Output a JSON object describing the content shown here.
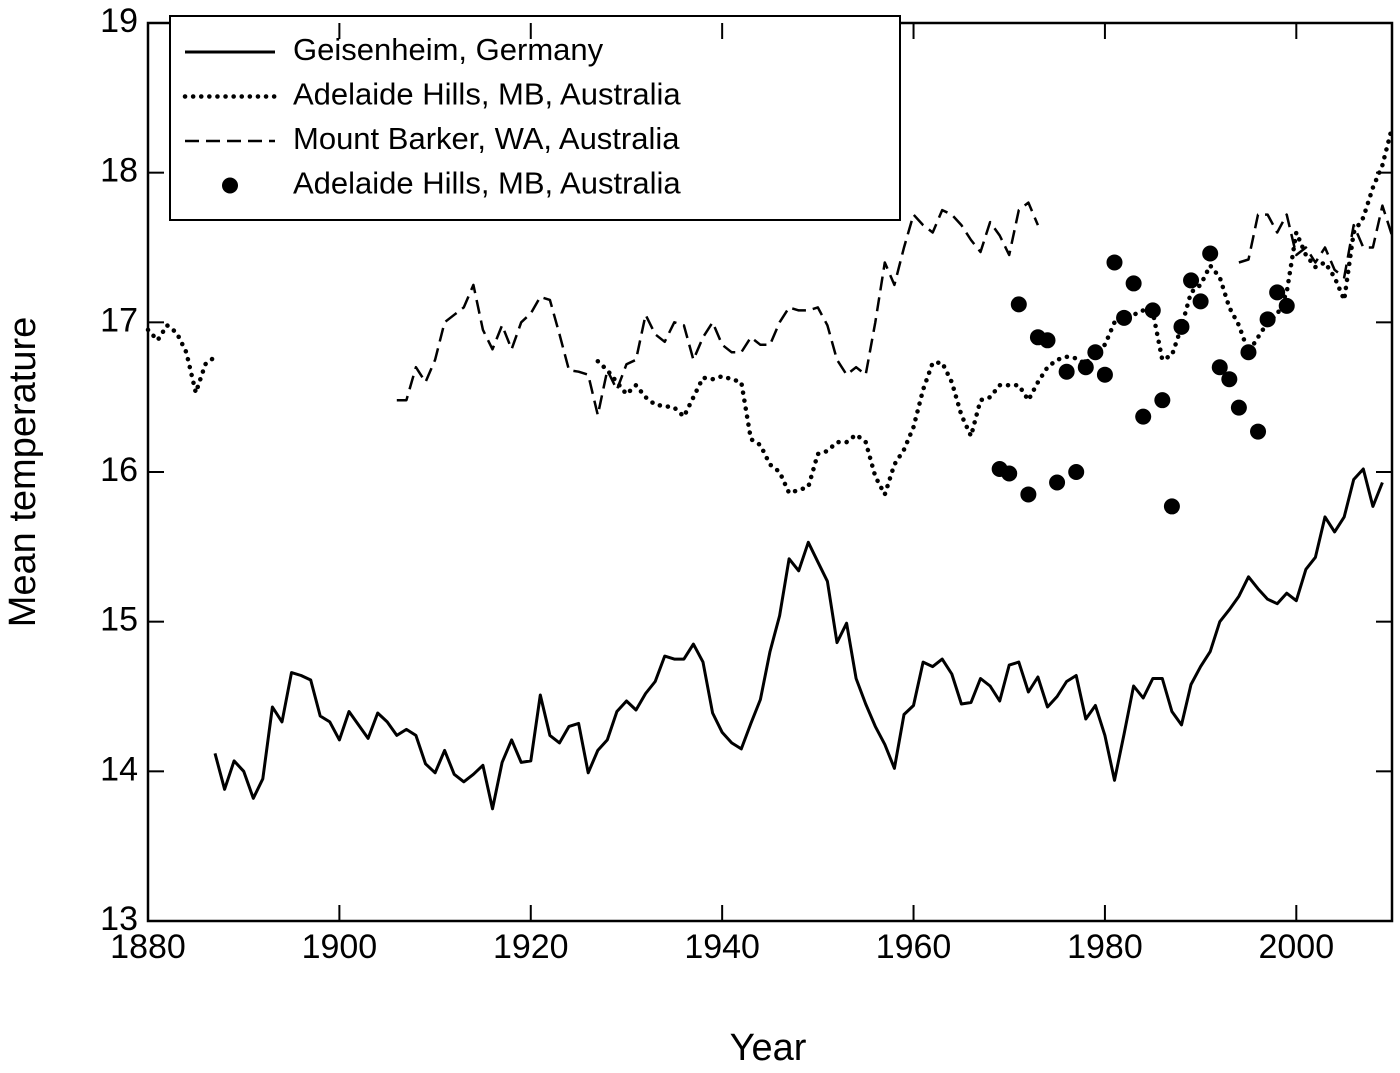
{
  "chart_data": {
    "type": "line",
    "xlabel": "Year",
    "ylabel": "Mean temperature",
    "xlim": [
      1880,
      2010
    ],
    "ylim": [
      13,
      19
    ],
    "xticks": [
      1880,
      1900,
      1920,
      1940,
      1960,
      1980,
      2000
    ],
    "yticks": [
      13,
      14,
      15,
      16,
      17,
      18,
      19
    ],
    "legend": "upper-left",
    "series": [
      {
        "name": "Geisenheim, Germany",
        "color": "#000000",
        "style": "solid",
        "x": [
          1887,
          1888,
          1889,
          1890,
          1891,
          1892,
          1893,
          1894,
          1895,
          1896,
          1897,
          1898,
          1899,
          1900,
          1901,
          1902,
          1903,
          1904,
          1905,
          1906,
          1907,
          1908,
          1909,
          1910,
          1911,
          1912,
          1913,
          1914,
          1915,
          1916,
          1917,
          1918,
          1919,
          1920,
          1921,
          1922,
          1923,
          1924,
          1925,
          1926,
          1927,
          1928,
          1929,
          1930,
          1931,
          1932,
          1933,
          1934,
          1935,
          1936,
          1937,
          1938,
          1939,
          1940,
          1941,
          1942,
          1943,
          1944,
          1945,
          1946,
          1947,
          1948,
          1949,
          1950,
          1951,
          1952,
          1953,
          1954,
          1955,
          1956,
          1957,
          1958,
          1959,
          1960,
          1961,
          1962,
          1963,
          1964,
          1965,
          1966,
          1967,
          1968,
          1969,
          1970,
          1971,
          1972,
          1973,
          1974,
          1975,
          1976,
          1977,
          1978,
          1979,
          1980,
          1981,
          1982,
          1983,
          1984,
          1985,
          1986,
          1987,
          1988,
          1989,
          1990,
          1991,
          1992,
          1993,
          1994,
          1995,
          1996,
          1997,
          1998,
          1999,
          2000,
          2001,
          2002,
          2003,
          2004,
          2005,
          2006,
          2007,
          2008,
          2009
        ],
        "values": [
          14.12,
          13.88,
          14.07,
          14.0,
          13.82,
          13.95,
          14.43,
          14.33,
          14.66,
          14.64,
          14.61,
          14.37,
          14.33,
          14.21,
          14.4,
          14.31,
          14.22,
          14.39,
          14.33,
          14.24,
          14.28,
          14.24,
          14.05,
          13.99,
          14.14,
          13.98,
          13.93,
          13.98,
          14.04,
          13.75,
          14.06,
          14.21,
          14.06,
          14.07,
          14.51,
          14.24,
          14.19,
          14.3,
          14.32,
          13.99,
          14.14,
          14.21,
          14.4,
          14.47,
          14.41,
          14.52,
          14.6,
          14.77,
          14.75,
          14.75,
          14.85,
          14.73,
          14.39,
          14.26,
          14.19,
          14.15,
          14.32,
          14.48,
          14.8,
          15.04,
          15.42,
          15.34,
          15.53,
          15.4,
          15.27,
          14.86,
          14.99,
          14.62,
          14.45,
          14.3,
          14.18,
          14.02,
          14.38,
          14.44,
          14.73,
          14.7,
          14.75,
          14.65,
          14.45,
          14.46,
          14.62,
          14.57,
          14.47,
          14.71,
          14.73,
          14.53,
          14.63,
          14.43,
          14.5,
          14.6,
          14.64,
          14.35,
          14.44,
          14.24,
          13.94,
          14.25,
          14.57,
          14.49,
          14.62,
          14.62,
          14.4,
          14.31,
          14.58,
          14.7,
          14.8,
          15.0,
          15.08,
          15.17,
          15.3,
          15.22,
          15.15,
          15.12,
          15.19,
          15.14,
          15.35,
          15.43,
          15.7,
          15.6,
          15.7,
          15.95,
          16.02,
          15.77,
          15.93
        ]
      },
      {
        "name": "Adelaide Hills, MB, Australia",
        "color": "#000000",
        "style": "dotted",
        "x": [
          1880,
          1881,
          1882,
          1883,
          1884,
          1885,
          1886,
          1887,
          1888,
          1927,
          1928,
          1929,
          1930,
          1931,
          1932,
          1933,
          1934,
          1935,
          1936,
          1937,
          1938,
          1939,
          1940,
          1941,
          1942,
          1943,
          1944,
          1945,
          1946,
          1947,
          1948,
          1949,
          1950,
          1951,
          1952,
          1953,
          1954,
          1955,
          1956,
          1957,
          1958,
          1959,
          1960,
          1961,
          1962,
          1963,
          1964,
          1965,
          1966,
          1967,
          1968,
          1969,
          1970,
          1971,
          1972,
          1973,
          1974,
          1975,
          1976,
          1977,
          1978,
          1979,
          1980,
          1981,
          1982,
          1983,
          1984,
          1985,
          1986,
          1987,
          1988,
          1989,
          1990,
          1991,
          1992,
          1993,
          1994,
          1995,
          1996,
          1997,
          1998,
          1999,
          2000,
          2001,
          2002,
          2003,
          2004,
          2005,
          2006,
          2007,
          2008,
          2009,
          2010
        ],
        "values": [
          16.95,
          16.88,
          16.98,
          16.93,
          16.8,
          16.53,
          16.72,
          16.77,
          null,
          16.74,
          16.68,
          16.6,
          16.52,
          16.58,
          16.5,
          16.45,
          16.44,
          16.43,
          16.37,
          16.5,
          16.63,
          16.62,
          16.64,
          16.62,
          16.6,
          16.22,
          16.18,
          16.05,
          16.0,
          15.86,
          15.88,
          15.9,
          16.12,
          16.14,
          16.2,
          16.2,
          16.25,
          16.2,
          15.97,
          15.85,
          16.05,
          16.15,
          16.3,
          16.55,
          16.73,
          16.73,
          16.6,
          16.38,
          16.24,
          16.48,
          16.5,
          16.58,
          16.58,
          16.58,
          16.48,
          16.6,
          16.7,
          16.75,
          16.77,
          16.76,
          16.72,
          16.82,
          16.85,
          17.0,
          17.05,
          17.05,
          17.08,
          17.07,
          16.75,
          16.78,
          16.97,
          17.2,
          17.25,
          17.38,
          17.3,
          17.1,
          16.98,
          16.8,
          16.9,
          17.0,
          17.05,
          17.2,
          17.6,
          17.45,
          17.37,
          17.4,
          17.3,
          17.15,
          17.6,
          17.7,
          17.9,
          18.05,
          18.3
        ]
      },
      {
        "name": "Mount Barker, WA, Australia",
        "color": "#000000",
        "style": "dashed",
        "x": [
          1906,
          1907,
          1908,
          1909,
          1910,
          1911,
          1912,
          1913,
          1914,
          1915,
          1916,
          1917,
          1918,
          1919,
          1920,
          1921,
          1922,
          1923,
          1924,
          1925,
          1926,
          1927,
          1928,
          1929,
          1930,
          1931,
          1932,
          1933,
          1934,
          1935,
          1936,
          1937,
          1938,
          1939,
          1940,
          1941,
          1942,
          1943,
          1944,
          1945,
          1946,
          1947,
          1948,
          1949,
          1950,
          1951,
          1952,
          1953,
          1954,
          1955,
          1956,
          1957,
          1958,
          1959,
          1960,
          1961,
          1962,
          1963,
          1964,
          1965,
          1966,
          1967,
          1968,
          1969,
          1970,
          1971,
          1972,
          1973,
          1974,
          1994,
          1995,
          1996,
          1997,
          1998,
          1999,
          2000,
          2001,
          2002,
          2003,
          2004,
          2005,
          2006,
          2007,
          2008,
          2009,
          2010
        ],
        "values": [
          16.48,
          16.48,
          16.7,
          16.6,
          16.75,
          17.0,
          17.05,
          17.1,
          17.25,
          16.95,
          16.82,
          16.98,
          16.82,
          17.0,
          17.06,
          17.17,
          17.15,
          16.92,
          16.68,
          16.67,
          16.65,
          16.38,
          16.68,
          16.55,
          16.72,
          16.75,
          17.05,
          16.92,
          16.87,
          17.0,
          16.98,
          16.75,
          16.9,
          17.0,
          16.85,
          16.8,
          16.8,
          16.9,
          16.85,
          16.85,
          17.0,
          17.1,
          17.08,
          17.08,
          17.1,
          16.98,
          16.75,
          16.65,
          16.7,
          16.65,
          17.0,
          17.4,
          17.25,
          17.5,
          17.72,
          17.65,
          17.6,
          17.75,
          17.72,
          17.65,
          17.55,
          17.47,
          17.67,
          17.58,
          17.45,
          17.75,
          17.8,
          17.65,
          null,
          17.4,
          17.42,
          17.72,
          17.72,
          17.6,
          17.72,
          17.45,
          17.5,
          17.4,
          17.5,
          17.35,
          17.3,
          17.65,
          17.5,
          17.5,
          17.78,
          17.58
        ]
      },
      {
        "name": "Adelaide Hills, MB, Australia",
        "color": "#000000",
        "style": "marker",
        "x": [
          1969,
          1970,
          1971,
          1972,
          1973,
          1974,
          1975,
          1976,
          1977,
          1978,
          1979,
          1980,
          1981,
          1982,
          1983,
          1984,
          1985,
          1986,
          1987,
          1988,
          1989,
          1990,
          1991,
          1992,
          1993,
          1994,
          1995,
          1996,
          1997,
          1998,
          1999
        ],
        "values": [
          16.02,
          15.99,
          17.12,
          15.85,
          16.9,
          16.88,
          15.93,
          16.67,
          16.0,
          16.7,
          16.8,
          16.65,
          17.4,
          17.03,
          17.26,
          16.37,
          17.08,
          16.48,
          15.77,
          16.97,
          17.28,
          17.14,
          17.46,
          16.7,
          16.62,
          16.43,
          16.8,
          16.27,
          17.02,
          17.2,
          17.11
        ]
      }
    ]
  }
}
